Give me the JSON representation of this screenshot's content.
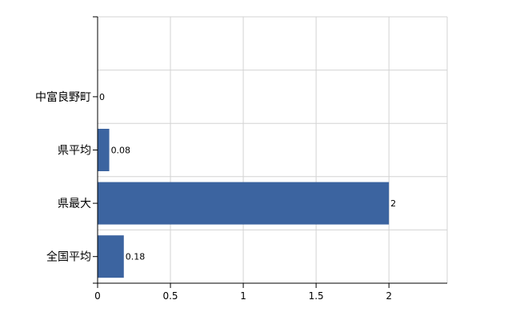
{
  "chart_data": {
    "type": "bar",
    "orientation": "horizontal",
    "categories": [
      "中富良野町",
      "県平均",
      "県最大",
      "全国平均"
    ],
    "values": [
      0,
      0.08,
      2,
      0.18
    ],
    "value_labels": [
      "0",
      "0.08",
      "2",
      "0.18"
    ],
    "xlim": [
      0,
      2.4
    ],
    "x_ticks": [
      0,
      0.5,
      1,
      1.5,
      2
    ],
    "x_tick_labels": [
      "0",
      "0.5",
      "1",
      "1.5",
      "2"
    ],
    "grid": true,
    "title": "",
    "xlabel": "",
    "ylabel": "",
    "bar_color": "#3C64A0"
  }
}
